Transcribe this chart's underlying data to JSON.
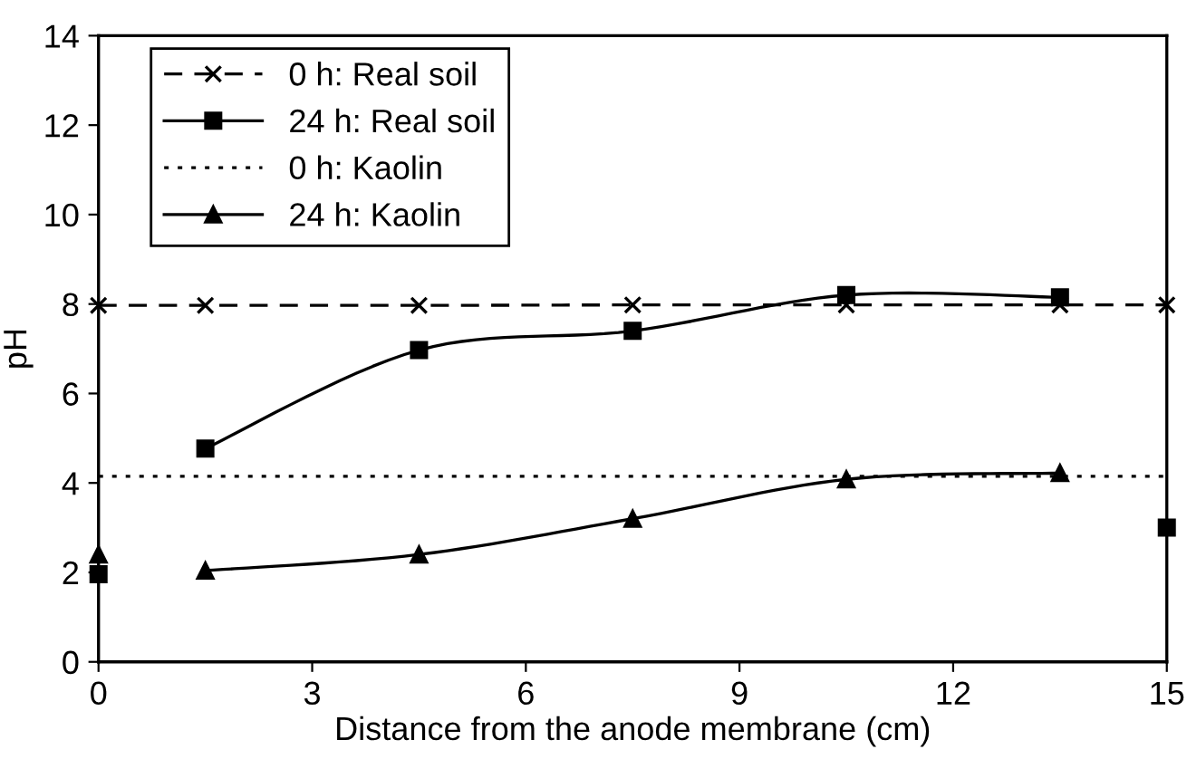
{
  "chart_data": {
    "type": "line",
    "xlabel": "Distance from the anode membrane (cm)",
    "ylabel": "pH",
    "xlim": [
      0,
      15
    ],
    "xticks": [
      0,
      3,
      6,
      9,
      12,
      15
    ],
    "ylim": [
      0,
      14
    ],
    "yticks": [
      0,
      2,
      4,
      6,
      8,
      10,
      12,
      14
    ],
    "grid": false,
    "legend": "top left",
    "series": [
      {
        "name": "0 h: Real soil",
        "color": "#000000",
        "marker": "cross",
        "line_style": "dashed",
        "x": [
          0,
          1.5,
          4.5,
          7.5,
          10.5,
          13.5,
          15
        ],
        "values": [
          7.97,
          7.97,
          7.97,
          7.98,
          7.98,
          7.98,
          7.98
        ]
      },
      {
        "name": "24 h: Real soil",
        "color": "#000000",
        "marker": "square",
        "line_style": "solid",
        "x": [
          0,
          0.75,
          1.5,
          4.5,
          7.5,
          10.5,
          13.5,
          14.25,
          15
        ],
        "values": [
          1.96,
          null,
          4.77,
          6.97,
          7.4,
          8.2,
          8.15,
          null,
          3.0
        ]
      },
      {
        "name": "0 h: Kaolin",
        "color": "#000000",
        "marker": "none",
        "line_style": "dotted",
        "x": [
          0,
          15
        ],
        "values": [
          4.15,
          4.15
        ]
      },
      {
        "name": "24 h: Kaolin",
        "color": "#000000",
        "marker": "triangle",
        "line_style": "solid",
        "x": [
          0,
          0.75,
          1.5,
          4.5,
          7.5,
          10.5,
          13.5
        ],
        "values": [
          2.4,
          null,
          2.04,
          2.4,
          3.2,
          4.08,
          4.22
        ]
      }
    ]
  }
}
